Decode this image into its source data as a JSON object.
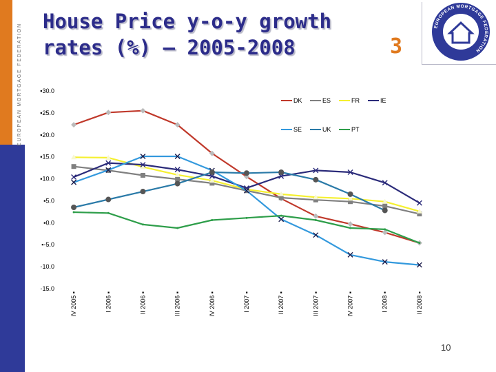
{
  "slide": {
    "title": "House Price y-o-y growth\nrates (%) – 2005-2008",
    "number_big": "3",
    "page_number": "10",
    "brand_vertical": "EUROPEAN MORTGAGE FEDERATION",
    "logo_ring_text": "EUROPEAN MORTGAGE FEDERATION",
    "colors": {
      "orange": "#e07a1f",
      "navy": "#2f3a99",
      "title": "#2c2c8a"
    }
  },
  "chart_data": {
    "type": "line",
    "categories": [
      "IV 2005",
      "I 2006",
      "II 2006",
      "III 2006",
      "IV 2006",
      "I 2007",
      "II 2007",
      "III 2007",
      "IV 2007",
      "I 2008",
      "II 2008"
    ],
    "ylim": [
      -15,
      30
    ],
    "yticks": [
      30.0,
      25.0,
      20.0,
      15.0,
      10.0,
      5.0,
      0.0,
      -5.0,
      -10.0,
      -15.0
    ],
    "ytick_labels": [
      "30.0",
      "25.0",
      "20.0",
      "15.0",
      "10.0",
      "5.0",
      "0.0",
      "-5.0",
      "-10.0",
      "-15.0"
    ],
    "legend_position": "top-right",
    "grid": false,
    "series": [
      {
        "name": "DK",
        "color": "#c0392b",
        "marker": "diamond",
        "values": [
          22.3,
          25.1,
          25.5,
          22.3,
          15.8,
          10.5,
          5.5,
          1.5,
          -0.3,
          -2.2,
          -4.6
        ]
      },
      {
        "name": "ES",
        "color": "#808080",
        "marker": "square",
        "values": [
          12.8,
          11.9,
          10.8,
          9.9,
          9.0,
          7.3,
          5.7,
          5.2,
          4.8,
          3.8,
          2.0
        ]
      },
      {
        "name": "FR",
        "color": "#f5f030",
        "marker": "triangle",
        "values": [
          14.9,
          14.8,
          12.7,
          10.9,
          9.6,
          7.6,
          6.5,
          5.8,
          5.5,
          4.8,
          2.6
        ]
      },
      {
        "name": "IE",
        "color": "#2b2b7a",
        "marker": "x",
        "values": [
          10.4,
          13.6,
          13.2,
          12.1,
          10.6,
          7.9,
          10.6,
          11.9,
          11.5,
          9.1,
          4.5
        ]
      },
      {
        "name": "SE",
        "color": "#3399dd",
        "marker": "x",
        "values": [
          9.2,
          12.0,
          15.1,
          15.1,
          11.9,
          7.3,
          0.8,
          -2.8,
          -7.3,
          -8.9,
          -9.6
        ]
      },
      {
        "name": "UK",
        "color": "#2a7aa8",
        "marker": "circle",
        "values": [
          3.5,
          5.3,
          7.1,
          8.9,
          11.5,
          11.3,
          11.5,
          9.8,
          6.5,
          2.8,
          null
        ]
      },
      {
        "name": "PT",
        "color": "#2e9e4a",
        "marker": "none",
        "values": [
          2.4,
          2.2,
          -0.4,
          -1.2,
          0.6,
          1.1,
          1.6,
          0.6,
          -1.2,
          -1.5,
          -4.6
        ]
      }
    ]
  }
}
